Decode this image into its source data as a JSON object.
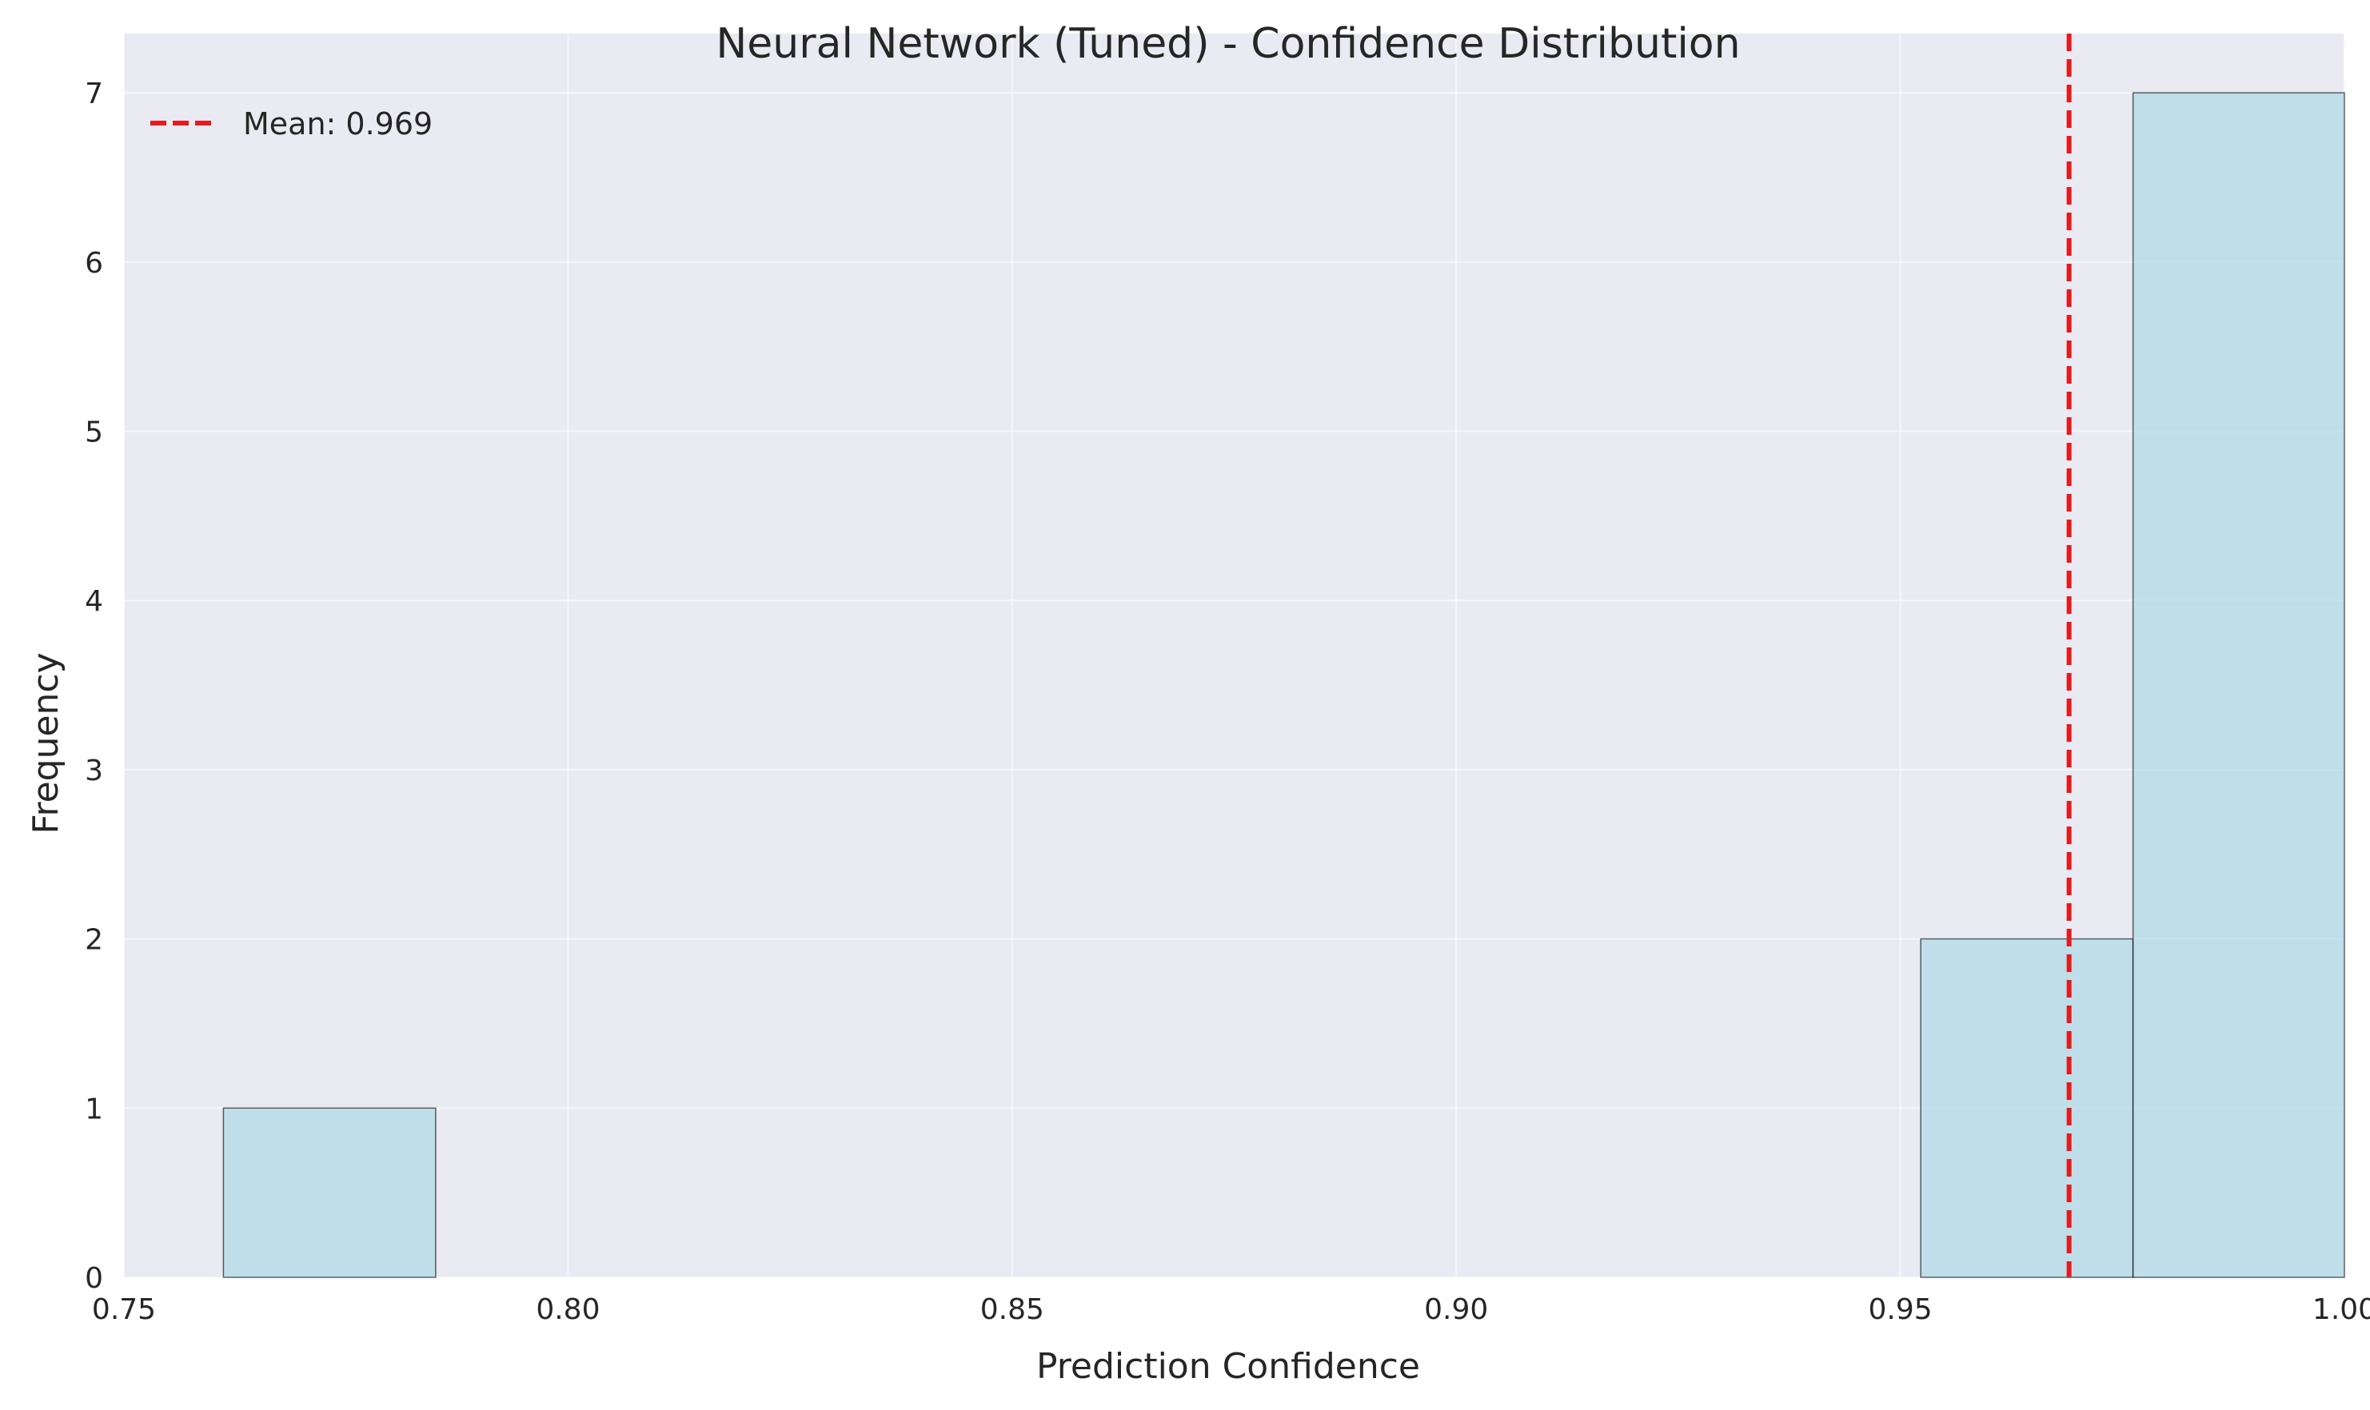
{
  "chart_data": {
    "type": "bar",
    "title": "Neural Network (Tuned) - Confidence Distribution",
    "xlabel": "Prediction Confidence",
    "ylabel": "Frequency",
    "xlim": [
      0.75,
      1.0
    ],
    "ylim": [
      0,
      7.35
    ],
    "x_ticks": [
      0.75,
      0.8,
      0.85,
      0.9,
      0.95,
      1.0
    ],
    "x_tick_labels": [
      "0.75",
      "0.80",
      "0.85",
      "0.90",
      "0.95",
      "1.00"
    ],
    "y_ticks": [
      0,
      1,
      2,
      3,
      4,
      5,
      6,
      7
    ],
    "y_tick_labels": [
      "0",
      "1",
      "2",
      "3",
      "4",
      "5",
      "6",
      "7"
    ],
    "grid": true,
    "bins": [
      {
        "start": 0.7612,
        "end": 0.7851,
        "count": 1
      },
      {
        "start": 0.7851,
        "end": 0.809,
        "count": 0
      },
      {
        "start": 0.809,
        "end": 0.8329,
        "count": 0
      },
      {
        "start": 0.8329,
        "end": 0.8568,
        "count": 0
      },
      {
        "start": 0.8568,
        "end": 0.8806,
        "count": 0
      },
      {
        "start": 0.8806,
        "end": 0.9045,
        "count": 0
      },
      {
        "start": 0.9045,
        "end": 0.9284,
        "count": 0
      },
      {
        "start": 0.9284,
        "end": 0.9523,
        "count": 0
      },
      {
        "start": 0.9523,
        "end": 0.9762,
        "count": 2
      },
      {
        "start": 0.9762,
        "end": 1.0,
        "count": 7
      }
    ],
    "mean_line": {
      "value": 0.969,
      "color": "#e41a1c",
      "style": "dashed"
    },
    "legend": {
      "position": "top-left",
      "entries": [
        {
          "label": "Mean: 0.969"
        }
      ]
    },
    "bar_color": "#add8e6"
  }
}
